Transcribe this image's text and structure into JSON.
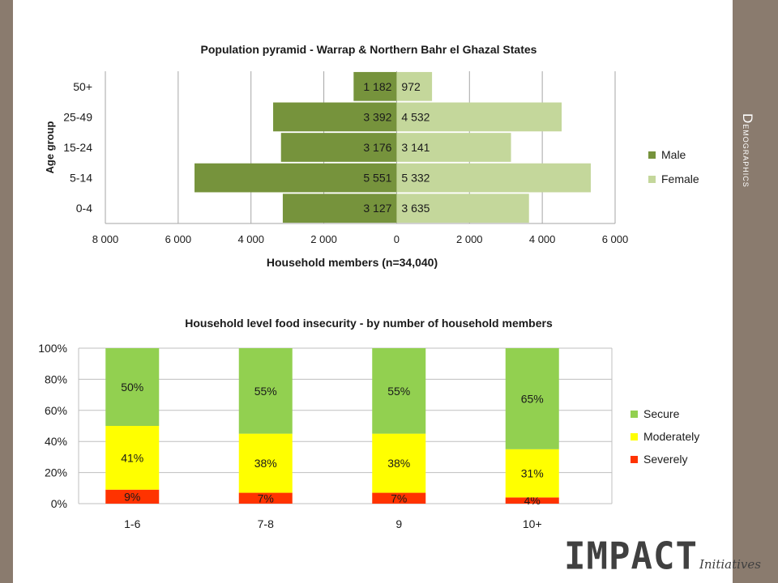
{
  "slide": {
    "section_title": "Demographics",
    "logo_main": "IMPACT",
    "logo_sub": "Initiatives"
  },
  "colors": {
    "male": "#76933c",
    "female": "#c4d79b",
    "secure": "#92d050",
    "moderately": "#ffff00",
    "severely": "#ff3300",
    "side_panel": "#8a7b6e"
  },
  "chart_data": [
    {
      "type": "bar",
      "orientation": "horizontal",
      "title": "Population pyramid - Warrap & Northern Bahr el Ghazal States",
      "xlabel": "Household members (n=34,040)",
      "ylabel": "Age group",
      "categories": [
        "50+",
        "25-49",
        "15-24",
        "5-14",
        "0-4"
      ],
      "series": [
        {
          "name": "Male",
          "values": [
            1182,
            3392,
            3176,
            5551,
            3127
          ],
          "labels": [
            "1 182",
            "3 392",
            "3 176",
            "5 551",
            "3 127"
          ],
          "side": "left"
        },
        {
          "name": "Female",
          "values": [
            972,
            4532,
            3141,
            5332,
            3635
          ],
          "labels": [
            "972",
            "4 532",
            "3 141",
            "5 332",
            "3 635"
          ],
          "side": "right"
        }
      ],
      "xlim": [
        -8000,
        6000
      ],
      "xticks": [
        -8000,
        -6000,
        -4000,
        -2000,
        0,
        2000,
        4000,
        6000
      ],
      "xtick_labels": [
        "8 000",
        "6 000",
        "4 000",
        "2 000",
        "0",
        "2 000",
        "4 000",
        "6 000"
      ],
      "grid": true,
      "legend": "right"
    },
    {
      "type": "bar",
      "stacked": true,
      "title": "Household level food insecurity - by number of household members",
      "categories": [
        "1-6",
        "7-8",
        "9",
        "10+"
      ],
      "series": [
        {
          "name": "Severely",
          "values": [
            9,
            7,
            7,
            4
          ],
          "labels": [
            "9%",
            "7%",
            "7%",
            "4%"
          ]
        },
        {
          "name": "Moderately",
          "values": [
            41,
            38,
            38,
            31
          ],
          "labels": [
            "41%",
            "38%",
            "38%",
            "31%"
          ]
        },
        {
          "name": "Secure",
          "values": [
            50,
            55,
            55,
            65
          ],
          "labels": [
            "50%",
            "55%",
            "55%",
            "65%"
          ]
        }
      ],
      "ylim": [
        0,
        100
      ],
      "yticks": [
        0,
        20,
        40,
        60,
        80,
        100
      ],
      "ytick_labels": [
        "0%",
        "20%",
        "40%",
        "60%",
        "80%",
        "100%"
      ],
      "legend_order": [
        "Secure",
        "Moderately",
        "Severely"
      ],
      "grid": true,
      "legend": "right"
    }
  ]
}
